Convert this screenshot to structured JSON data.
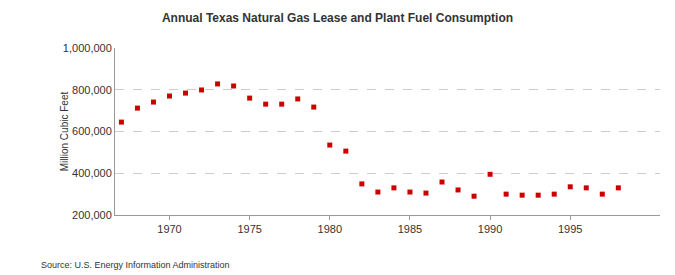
{
  "chart_data": {
    "type": "scatter",
    "title": "Annual Texas Natural Gas Lease and Plant Fuel Consumption",
    "y_label": "Million Cubic Feet",
    "annotations": [
      "Source: U.S. Energy Information Administration"
    ],
    "x": [
      1967,
      1968,
      1969,
      1970,
      1971,
      1972,
      1973,
      1974,
      1975,
      1976,
      1977,
      1978,
      1979,
      1980,
      1981,
      1982,
      1983,
      1984,
      1985,
      1986,
      1987,
      1988,
      1989,
      1990,
      1991,
      1992,
      1993,
      1994,
      1995,
      1996,
      1997,
      1998
    ],
    "values": [
      645000,
      712000,
      741000,
      770000,
      784000,
      799000,
      828000,
      818000,
      760000,
      731000,
      731000,
      756000,
      717000,
      535000,
      506000,
      349000,
      310000,
      330000,
      310000,
      305000,
      358000,
      320000,
      290000,
      395000,
      300000,
      295000,
      295000,
      300000,
      335000,
      330000,
      300000,
      330000
    ],
    "color": "#cc0000",
    "marker": "square",
    "xlim": [
      1966.6,
      2000.6
    ],
    "xticks": [
      1970,
      1975,
      1980,
      1985,
      1990,
      1995
    ],
    "ylim": [
      200000,
      1000000
    ],
    "yticks": [
      {
        "value": 200000,
        "label": "200,000"
      },
      {
        "value": 400000,
        "label": "400,000"
      },
      {
        "value": 600000,
        "label": "600,000"
      },
      {
        "value": 800000,
        "label": "800,000"
      },
      {
        "value": 1000000,
        "label": "1,000,000"
      }
    ],
    "grid": true
  }
}
